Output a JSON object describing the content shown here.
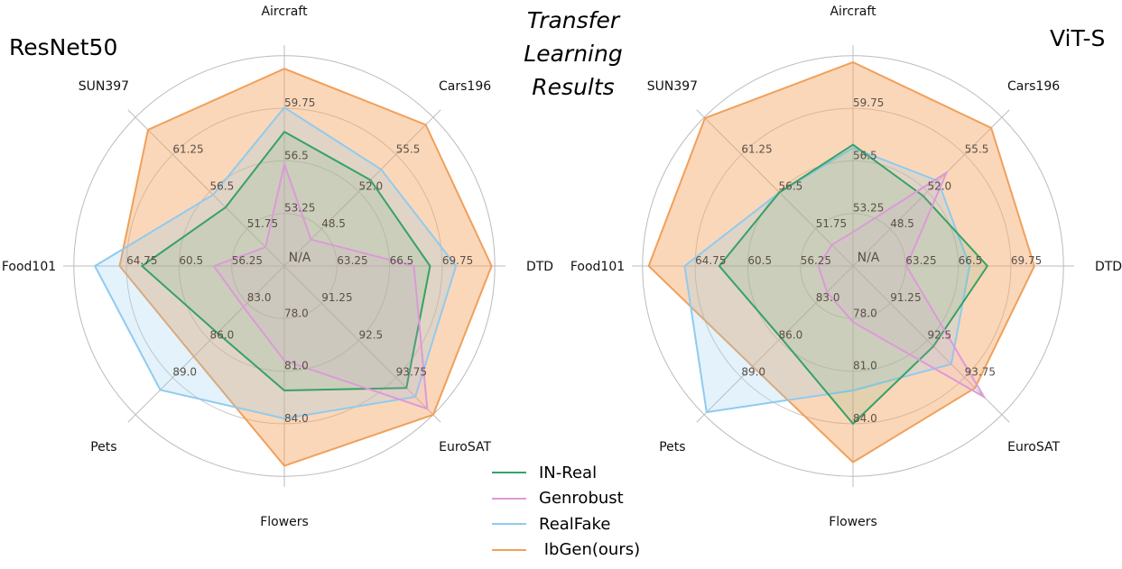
{
  "title_lines": [
    "Transfer",
    "Learning",
    "Results"
  ],
  "legend": [
    {
      "name": "IN-Real",
      "color": "#36a266"
    },
    {
      "name": "Genrobust",
      "color": "#dc9ad9"
    },
    {
      "name": "RealFake",
      "color": "#8fcbee"
    },
    {
      "name": " IbGen(ours)",
      "color": "#f0a05a"
    }
  ],
  "chart_data": [
    {
      "type": "radar",
      "title": "ResNet50",
      "center_label": "N/A",
      "axes": [
        "Aircraft",
        "Cars196",
        "DTD",
        "EuroSAT",
        "Flowers",
        "Pets",
        "Food101",
        "SUN397"
      ],
      "axis_ticks": {
        "Aircraft": [
          "53.25",
          "56.5",
          "59.75"
        ],
        "Cars196": [
          "48.5",
          "52.0",
          "55.5"
        ],
        "DTD": [
          "63.25",
          "66.5",
          "69.75"
        ],
        "EuroSAT": [
          "91.25",
          "92.5",
          "93.75"
        ],
        "Flowers": [
          "78.0",
          "81.0",
          "84.0"
        ],
        "Pets": [
          "83.0",
          "86.0",
          "89.0"
        ],
        "Food101": [
          "56.25",
          "60.5",
          "64.75"
        ],
        "SUN397": [
          "51.75",
          "56.5",
          "61.25"
        ]
      },
      "grid": true,
      "series": [
        {
          "name": "IbGen(ours)",
          "values": [
            62.2,
            58.3,
            72.8,
            95.0,
            86.4,
            87.3,
            65.3,
            64.4
          ]
        },
        {
          "name": "RealFake",
          "values": [
            59.8,
            54.1,
            70.6,
            94.4,
            83.7,
            90.0,
            67.3,
            56.1
          ]
        },
        {
          "name": "IN-Real",
          "values": [
            58.3,
            53.1,
            69.0,
            94.1,
            82.1,
            85.4,
            63.5,
            54.5
          ]
        },
        {
          "name": "Genrobust",
          "values": [
            56.3,
            47.5,
            68.0,
            94.8,
            80.4,
            83.3,
            57.7,
            49.4
          ]
        }
      ]
    },
    {
      "type": "radar",
      "title": "ViT-S",
      "center_label": "N/A",
      "axes": [
        "Aircraft",
        "Cars196",
        "DTD",
        "EuroSAT",
        "Flowers",
        "Pets",
        "Food101",
        "SUN397"
      ],
      "axis_ticks": {
        "Aircraft": [
          "53.25",
          "56.5",
          "59.75"
        ],
        "Cars196": [
          "48.5",
          "52.0",
          "55.5"
        ],
        "DTD": [
          "63.25",
          "66.5",
          "69.75"
        ],
        "EuroSAT": [
          "91.25",
          "92.5",
          "93.75"
        ],
        "Flowers": [
          "78.0",
          "81.0",
          "84.0"
        ],
        "Pets": [
          "83.0",
          "86.0",
          "89.0"
        ],
        "Food101": [
          "56.25",
          "60.5",
          "64.75"
        ],
        "SUN397": [
          "51.75",
          "56.5",
          "61.25"
        ]
      },
      "grid": true,
      "series": [
        {
          "name": "IbGen(ours)",
          "values": [
            62.6,
            58.0,
            71.2,
            94.1,
            86.2,
            88.1,
            68.5,
            65.9
          ]
        },
        {
          "name": "RealFake",
          "values": [
            57.3,
            53.0,
            67.2,
            93.3,
            82.1,
            91.8,
            65.6,
            56.4
          ]
        },
        {
          "name": "IN-Real",
          "values": [
            57.5,
            51.6,
            68.3,
            92.7,
            84.0,
            85.8,
            62.8,
            56.4
          ]
        },
        {
          "name": "Genrobust",
          "values": [
            52.1,
            53.8,
            63.3,
            94.4,
            78.2,
            82.1,
            54.8,
            49.7
          ]
        }
      ]
    }
  ]
}
